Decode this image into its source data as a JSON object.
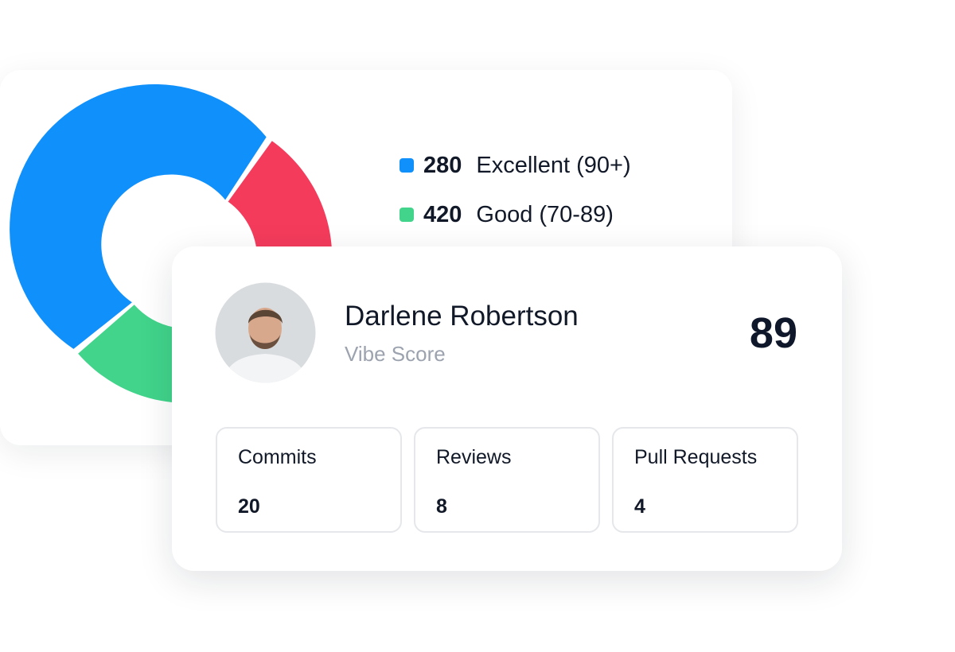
{
  "legend": [
    {
      "value": 280,
      "label": "Excellent (90+)"
    },
    {
      "value": 420,
      "label": "Good (70-89)"
    }
  ],
  "profile": {
    "name": "Darlene Robertson",
    "subtitle": "Vibe Score",
    "score": 89
  },
  "stats": [
    {
      "label": "Commits",
      "value": 20
    },
    {
      "label": "Reviews",
      "value": 8
    },
    {
      "label": "Pull Requests",
      "value": 4
    }
  ]
}
